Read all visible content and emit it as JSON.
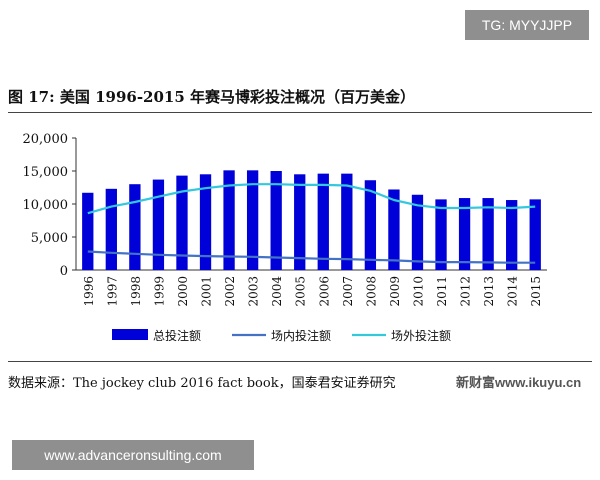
{
  "watermark_top": "TG: MYYJJPP",
  "watermark_bottom": "www.advanceronsulting.com",
  "site_watermark": "新财富www.ikuyu.cn",
  "figure_title": "图 17:  美国 1996-2015 年赛马博彩投注概况（百万美金）",
  "source": "数据来源：The jockey club 2016 fact book，国泰君安证券研究",
  "colors": {
    "bar": "#0000d8",
    "onsite": "#4472c4",
    "offsite": "#33c8dc"
  },
  "chart_data": {
    "type": "bar",
    "title": "美国 1996-2015 年赛马博彩投注概况（百万美金）",
    "xlabel": "",
    "ylabel": "",
    "ylim": [
      0,
      20000
    ],
    "yticks": [
      0,
      5000,
      10000,
      15000,
      20000
    ],
    "ytick_labels": [
      "0",
      "5,000",
      "10,000",
      "15,000",
      "20,000"
    ],
    "categories": [
      "1996",
      "1997",
      "1998",
      "1999",
      "2000",
      "2001",
      "2002",
      "2003",
      "2004",
      "2005",
      "2006",
      "2007",
      "2008",
      "2009",
      "2010",
      "2011",
      "2012",
      "2013",
      "2014",
      "2015"
    ],
    "series": [
      {
        "name": "总投注额",
        "type": "bar",
        "values": [
          11700,
          12300,
          13000,
          13700,
          14300,
          14500,
          15100,
          15100,
          15000,
          14500,
          14600,
          14600,
          13600,
          12200,
          11400,
          10700,
          10900,
          10900,
          10600,
          10700
        ]
      },
      {
        "name": "场内投注额",
        "type": "line",
        "values": [
          2800,
          2600,
          2450,
          2300,
          2200,
          2100,
          2050,
          2000,
          1900,
          1800,
          1700,
          1650,
          1550,
          1450,
          1300,
          1200,
          1200,
          1150,
          1100,
          1100
        ]
      },
      {
        "name": "场外投注额",
        "type": "line",
        "values": [
          8600,
          9600,
          10300,
          11100,
          11900,
          12400,
          12800,
          13000,
          13000,
          12900,
          12900,
          12800,
          12000,
          10600,
          9800,
          9400,
          9400,
          9500,
          9400,
          9600
        ]
      }
    ],
    "legend_position": "bottom",
    "grid": false
  }
}
